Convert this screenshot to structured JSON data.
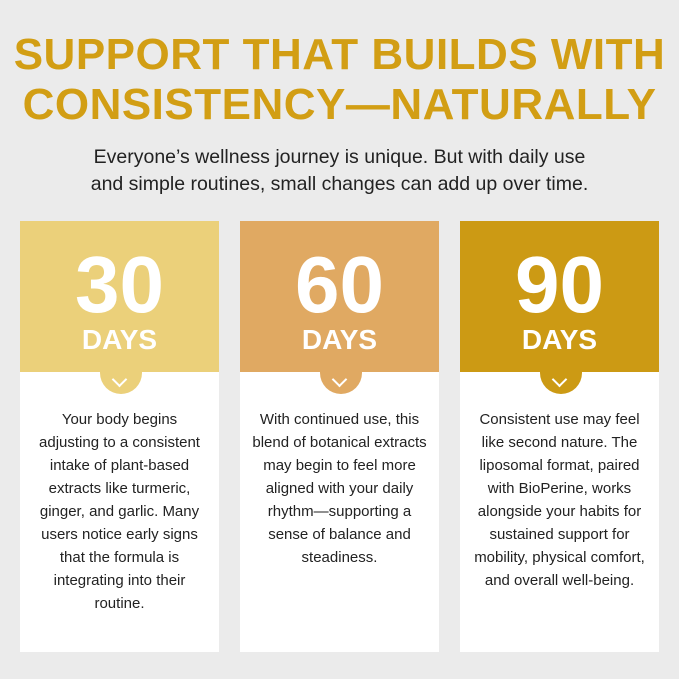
{
  "title_line1": "SUPPORT THAT BUILDS WITH",
  "title_line2": "CONSISTENCY—NATURALLY",
  "subtitle_line1": "Everyone’s wellness journey is unique. But with daily use",
  "subtitle_line2": "and simple routines, small changes can add up over time.",
  "colors": {
    "title": "#d29e14",
    "background": "#ebebeb",
    "card1": "#ebd07a",
    "card2": "#e0a962",
    "card3": "#cc9a14"
  },
  "cards": [
    {
      "number": "30",
      "unit": "DAYS",
      "icon": "chevron-down-icon",
      "text": "Your body begins adjusting to a consistent intake of plant-based extracts like turmeric, ginger, and garlic. Many users notice early signs that the formula is integrating into their routine."
    },
    {
      "number": "60",
      "unit": "DAYS",
      "icon": "chevron-down-icon",
      "text": "With continued use, this blend of botanical extracts may begin to feel more aligned with your daily rhythm—supporting a sense of balance and steadiness."
    },
    {
      "number": "90",
      "unit": "DAYS",
      "icon": "chevron-down-icon",
      "text": "Consistent use may feel like second nature. The liposomal format, paired with BioPerine, works alongside your habits for sustained support for mobility, physical comfort, and overall well-being."
    }
  ]
}
